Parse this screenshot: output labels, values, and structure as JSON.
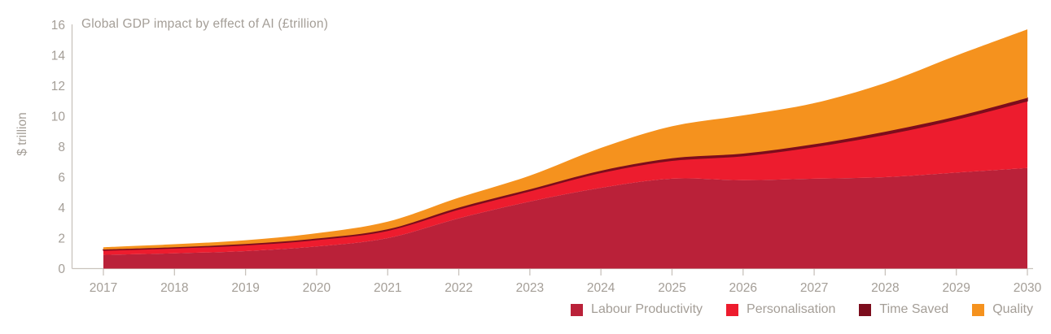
{
  "title": "Global GDP impact by effect of AI (£trillion)",
  "y_axis": {
    "label": "$ trillion",
    "ticks": [
      0,
      2,
      4,
      6,
      8,
      10,
      12,
      14,
      16
    ]
  },
  "colors": {
    "background": "#ffffff",
    "axis_line": "#c9c3bd",
    "tick_text": "#a49e97",
    "labour_productivity": "#ba2139",
    "personalisation": "#ed1c2e",
    "time_saved": "#7c0d1d",
    "quality": "#f5921e"
  },
  "chart_data": {
    "type": "area",
    "stacked": true,
    "title": "Global GDP impact by effect of AI (£trillion)",
    "xlabel": "",
    "ylabel": "$ trillion",
    "ylim": [
      0,
      16
    ],
    "grid": false,
    "legend_position": "bottom-right",
    "x": [
      2017,
      2018,
      2019,
      2020,
      2021,
      2022,
      2023,
      2024,
      2025,
      2026,
      2027,
      2028,
      2029,
      2030
    ],
    "series": [
      {
        "name": "Labour Productivity",
        "color": "#ba2139",
        "values": [
          0.9,
          1.0,
          1.15,
          1.45,
          2.0,
          3.3,
          4.4,
          5.3,
          5.9,
          5.8,
          5.9,
          6.0,
          6.3,
          6.6
        ]
      },
      {
        "name": "Personalisation",
        "color": "#ed1c2e",
        "values": [
          0.3,
          0.35,
          0.4,
          0.45,
          0.5,
          0.6,
          0.7,
          1.0,
          1.2,
          1.6,
          2.1,
          2.8,
          3.5,
          4.4
        ]
      },
      {
        "name": "Time Saved",
        "color": "#7c0d1d",
        "values": [
          0.05,
          0.05,
          0.06,
          0.07,
          0.08,
          0.1,
          0.1,
          0.12,
          0.14,
          0.15,
          0.16,
          0.18,
          0.18,
          0.2
        ]
      },
      {
        "name": "Quality",
        "color": "#f5921e",
        "values": [
          0.15,
          0.2,
          0.25,
          0.35,
          0.5,
          0.65,
          0.9,
          1.5,
          2.1,
          2.5,
          2.7,
          3.2,
          4.0,
          4.5
        ]
      }
    ]
  }
}
